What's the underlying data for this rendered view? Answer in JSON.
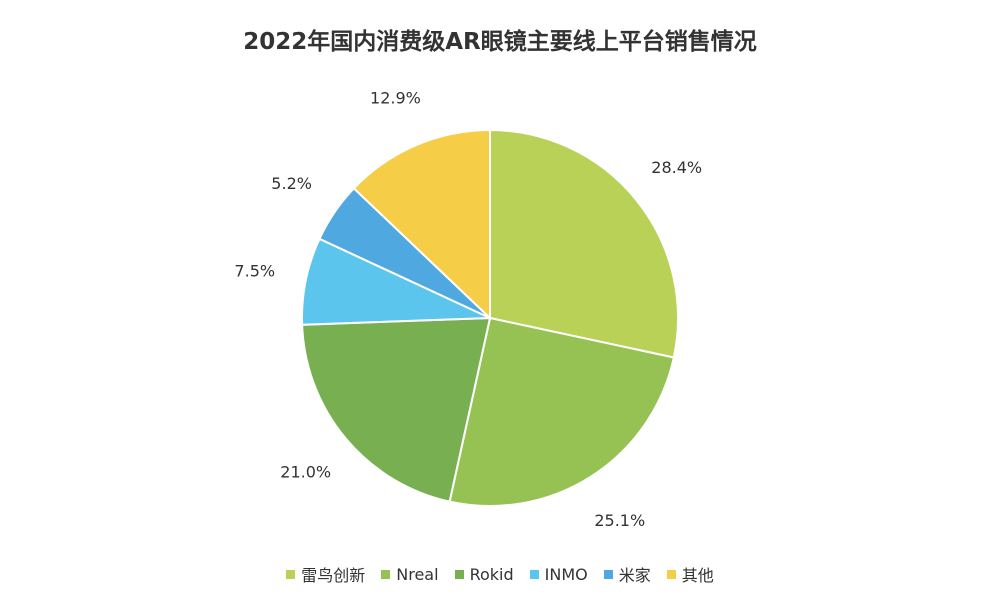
{
  "chart_data": {
    "type": "pie",
    "title": "2022年国内消费级AR眼镜主要线上平台销售情况",
    "slices": [
      {
        "name": "雷鸟创新",
        "value": 28.4,
        "label": "28.4%",
        "color": "#BAD157"
      },
      {
        "name": "Nreal",
        "value": 25.1,
        "label": "25.1%",
        "color": "#96C253"
      },
      {
        "name": "Rokid",
        "value": 21.0,
        "label": "21.0%",
        "color": "#78AF51"
      },
      {
        "name": "INMO",
        "value": 7.5,
        "label": "7.5%",
        "color": "#5BC5EE"
      },
      {
        "name": "米家",
        "value": 5.2,
        "label": "5.2%",
        "color": "#4FA9E0"
      },
      {
        "name": "其他",
        "value": 12.9,
        "label": "12.9%",
        "color": "#F6CD47"
      }
    ],
    "legend_position": "bottom"
  }
}
